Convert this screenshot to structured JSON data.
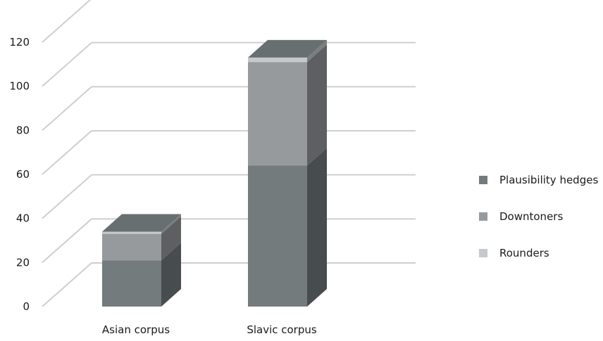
{
  "chart_data": {
    "type": "bar",
    "stacked": true,
    "three_d": true,
    "categories": [
      "Asian corpus",
      "Slavic corpus"
    ],
    "series": [
      {
        "name": "Plausibility hedges",
        "values": [
          21,
          64
        ],
        "color": "#737b7d"
      },
      {
        "name": "Downtoners",
        "values": [
          12,
          47
        ],
        "color": "#969a9d"
      },
      {
        "name": "Rounders",
        "values": [
          1,
          2
        ],
        "color": "#c6c9cb"
      }
    ],
    "ylim": [
      0,
      120
    ],
    "y_ticks": [
      "0",
      "20",
      "40",
      "60",
      "80",
      "100",
      "120"
    ],
    "grid": true,
    "legend_position": "right"
  }
}
